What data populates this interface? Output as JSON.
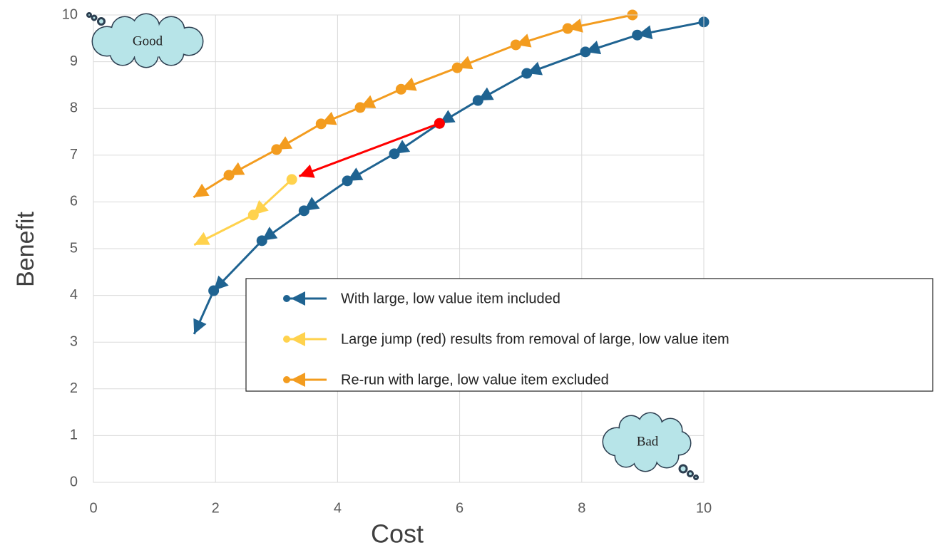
{
  "chart_data": {
    "type": "line",
    "x_label": "Cost",
    "y_label": "Benefit",
    "xlim": [
      0,
      10
    ],
    "ylim": [
      0,
      10
    ],
    "xticks": [
      0,
      2,
      4,
      6,
      8,
      10
    ],
    "yticks": [
      0,
      1,
      2,
      3,
      4,
      5,
      6,
      7,
      8,
      9,
      10
    ],
    "grid": true,
    "legend": "lower right",
    "annotations": [
      "Good",
      "Bad"
    ],
    "series": [
      {
        "name": "With large, low value item included",
        "color": "#1f6391",
        "x": [
          10,
          8.91,
          8.06,
          7.1,
          6.3,
          5.67,
          4.93,
          4.16,
          3.45,
          2.76,
          1.97,
          1.65
        ],
        "values": [
          9.85,
          9.57,
          9.21,
          8.75,
          8.17,
          7.68,
          7.03,
          6.45,
          5.81,
          5.17,
          4.1,
          3.17
        ]
      },
      {
        "name": "Large jump (red) results from removal of large, low value item",
        "color": "#ffd24d",
        "x": [
          3.25,
          2.62,
          1.65
        ],
        "values": [
          6.48,
          5.72,
          5.08
        ]
      },
      {
        "name": "Re-run with large, low value item excluded",
        "color": "#f39c1f",
        "x": [
          8.83,
          7.77,
          6.92,
          5.96,
          5.04,
          4.37,
          3.73,
          3.0,
          2.22,
          1.64
        ],
        "values": [
          10.0,
          9.71,
          9.36,
          8.87,
          8.41,
          8.02,
          7.67,
          7.12,
          6.57,
          6.1
        ]
      },
      {
        "color": "#ff0000",
        "legend": false,
        "x": [
          5.67,
          3.37
        ],
        "values": [
          7.68,
          6.55
        ]
      }
    ]
  }
}
